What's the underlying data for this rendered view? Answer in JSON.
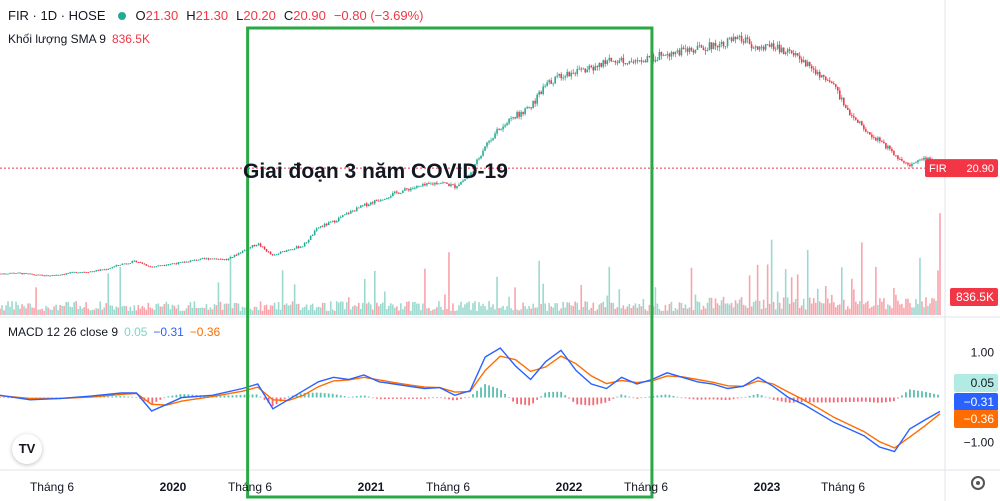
{
  "header": {
    "symbol": "FIR · 1D · HOSE",
    "o_label": "O",
    "o_value": "21.30",
    "h_label": "H",
    "h_value": "21.30",
    "l_label": "L",
    "l_value": "20.20",
    "c_label": "C",
    "c_value": "20.90",
    "change": "−0.80 (−3.69%)"
  },
  "volume_legend": {
    "label": "Khối lượng SMA 9",
    "value": "836.5K"
  },
  "macd_legend": {
    "label": "MACD 12 26 close 9",
    "hist": "0.05",
    "macd": "−0.31",
    "signal": "−0.36"
  },
  "annotation": "Giai đoạn 3 năm COVID-19",
  "colors": {
    "up": "#22ab94",
    "down": "#f23645",
    "macd": "#2962ff",
    "signal": "#ff6d00",
    "box": "#2aa845",
    "price_line": "#f23645"
  },
  "chart_data": {
    "type": "candlestick",
    "price_label": {
      "symbol": "FIR",
      "value": "20.90"
    },
    "volume_label": "836.5K",
    "macd_axis_ticks": [
      "1.00",
      "−1.00"
    ],
    "macd_badges": [
      "0.05",
      "−0.31",
      "−0.36"
    ],
    "x_ticks": [
      "Tháng 6",
      "2020",
      "Tháng 6",
      "2021",
      "Tháng 6",
      "2022",
      "Tháng 6",
      "2023",
      "Tháng 6"
    ],
    "price_series": [
      [
        0,
        6.5
      ],
      [
        3,
        6.6
      ],
      [
        6,
        6.4
      ],
      [
        9,
        6.2
      ],
      [
        12,
        6.4
      ],
      [
        15,
        6.7
      ],
      [
        18,
        6.8
      ],
      [
        21,
        7.1
      ],
      [
        24,
        7.8
      ],
      [
        27,
        8.2
      ],
      [
        30,
        7.4
      ],
      [
        33,
        7.8
      ],
      [
        36,
        8.0
      ],
      [
        39,
        8.4
      ],
      [
        42,
        8.6
      ],
      [
        45,
        8.4
      ],
      [
        48,
        9.6
      ],
      [
        51,
        10.6
      ],
      [
        54,
        8.9
      ],
      [
        57,
        9.8
      ],
      [
        60,
        10.3
      ],
      [
        63,
        12.8
      ],
      [
        66,
        13.6
      ],
      [
        69,
        14.8
      ],
      [
        72,
        15.8
      ],
      [
        75,
        16.6
      ],
      [
        78,
        17.4
      ],
      [
        81,
        18.1
      ],
      [
        84,
        18.5
      ],
      [
        87,
        19.0
      ],
      [
        90,
        18.4
      ],
      [
        93,
        19.9
      ],
      [
        96,
        24.0
      ],
      [
        99,
        26.4
      ],
      [
        102,
        28.0
      ],
      [
        105,
        29.2
      ],
      [
        108,
        32.2
      ],
      [
        111,
        33.6
      ],
      [
        114,
        34.0
      ],
      [
        117,
        34.4
      ],
      [
        120,
        35.4
      ],
      [
        123,
        35.7
      ],
      [
        126,
        35.2
      ],
      [
        129,
        35.9
      ],
      [
        132,
        36.6
      ],
      [
        135,
        36.8
      ],
      [
        138,
        37.2
      ],
      [
        141,
        37.6
      ],
      [
        144,
        38.2
      ],
      [
        147,
        38.4
      ],
      [
        150,
        37.2
      ],
      [
        153,
        37.4
      ],
      [
        156,
        36.8
      ],
      [
        159,
        35.4
      ],
      [
        162,
        33.8
      ],
      [
        165,
        32.0
      ],
      [
        168,
        28.6
      ],
      [
        171,
        26.4
      ],
      [
        174,
        24.6
      ],
      [
        177,
        22.8
      ],
      [
        180,
        21.2
      ],
      [
        183,
        22.4
      ],
      [
        186,
        20.9
      ]
    ],
    "price_range": [
      4,
      40
    ],
    "macd_series": [
      [
        0,
        0.05
      ],
      [
        6,
        -0.05
      ],
      [
        12,
        -0.02
      ],
      [
        18,
        0.03
      ],
      [
        24,
        0.1
      ],
      [
        27,
        0.1
      ],
      [
        30,
        -0.3
      ],
      [
        33,
        -0.15
      ],
      [
        36,
        0.0
      ],
      [
        42,
        0.05
      ],
      [
        48,
        0.2
      ],
      [
        51,
        0.3
      ],
      [
        54,
        -0.25
      ],
      [
        57,
        -0.05
      ],
      [
        60,
        0.15
      ],
      [
        63,
        0.35
      ],
      [
        66,
        0.45
      ],
      [
        69,
        0.4
      ],
      [
        72,
        0.5
      ],
      [
        75,
        0.35
      ],
      [
        78,
        0.3
      ],
      [
        81,
        0.25
      ],
      [
        84,
        0.2
      ],
      [
        87,
        0.22
      ],
      [
        90,
        0.05
      ],
      [
        93,
        0.15
      ],
      [
        96,
        0.9
      ],
      [
        99,
        1.1
      ],
      [
        102,
        0.7
      ],
      [
        105,
        0.4
      ],
      [
        108,
        0.8
      ],
      [
        111,
        1.05
      ],
      [
        114,
        0.6
      ],
      [
        117,
        0.3
      ],
      [
        120,
        0.2
      ],
      [
        123,
        0.45
      ],
      [
        126,
        0.3
      ],
      [
        129,
        0.4
      ],
      [
        132,
        0.55
      ],
      [
        135,
        0.45
      ],
      [
        138,
        0.35
      ],
      [
        141,
        0.3
      ],
      [
        144,
        0.2
      ],
      [
        147,
        0.25
      ],
      [
        150,
        0.45
      ],
      [
        153,
        0.25
      ],
      [
        156,
        0.0
      ],
      [
        159,
        -0.15
      ],
      [
        162,
        -0.35
      ],
      [
        165,
        -0.55
      ],
      [
        168,
        -0.7
      ],
      [
        171,
        -0.85
      ],
      [
        174,
        -1.1
      ],
      [
        177,
        -1.2
      ],
      [
        180,
        -0.7
      ],
      [
        183,
        -0.5
      ],
      [
        186,
        -0.31
      ]
    ],
    "signal_series": [
      [
        0,
        0.04
      ],
      [
        6,
        -0.02
      ],
      [
        12,
        -0.02
      ],
      [
        18,
        0.01
      ],
      [
        24,
        0.07
      ],
      [
        27,
        0.09
      ],
      [
        30,
        -0.15
      ],
      [
        33,
        -0.17
      ],
      [
        36,
        -0.08
      ],
      [
        42,
        0.02
      ],
      [
        48,
        0.14
      ],
      [
        51,
        0.23
      ],
      [
        54,
        -0.05
      ],
      [
        57,
        -0.07
      ],
      [
        60,
        0.05
      ],
      [
        63,
        0.24
      ],
      [
        66,
        0.37
      ],
      [
        69,
        0.39
      ],
      [
        72,
        0.45
      ],
      [
        75,
        0.39
      ],
      [
        78,
        0.33
      ],
      [
        81,
        0.28
      ],
      [
        84,
        0.23
      ],
      [
        87,
        0.22
      ],
      [
        90,
        0.12
      ],
      [
        93,
        0.13
      ],
      [
        96,
        0.6
      ],
      [
        99,
        0.92
      ],
      [
        102,
        0.84
      ],
      [
        105,
        0.58
      ],
      [
        108,
        0.68
      ],
      [
        111,
        0.92
      ],
      [
        114,
        0.75
      ],
      [
        117,
        0.48
      ],
      [
        120,
        0.31
      ],
      [
        123,
        0.38
      ],
      [
        126,
        0.33
      ],
      [
        129,
        0.37
      ],
      [
        132,
        0.48
      ],
      [
        135,
        0.46
      ],
      [
        138,
        0.4
      ],
      [
        141,
        0.34
      ],
      [
        144,
        0.26
      ],
      [
        147,
        0.25
      ],
      [
        150,
        0.37
      ],
      [
        153,
        0.3
      ],
      [
        156,
        0.12
      ],
      [
        159,
        -0.05
      ],
      [
        162,
        -0.24
      ],
      [
        165,
        -0.44
      ],
      [
        168,
        -0.6
      ],
      [
        171,
        -0.76
      ],
      [
        174,
        -0.98
      ],
      [
        177,
        -1.12
      ],
      [
        180,
        -0.88
      ],
      [
        183,
        -0.63
      ],
      [
        186,
        -0.36
      ]
    ],
    "macd_range": [
      -1.5,
      1.5
    ],
    "x_range": [
      0,
      186
    ],
    "highlight_box_x": [
      49,
      129
    ]
  }
}
